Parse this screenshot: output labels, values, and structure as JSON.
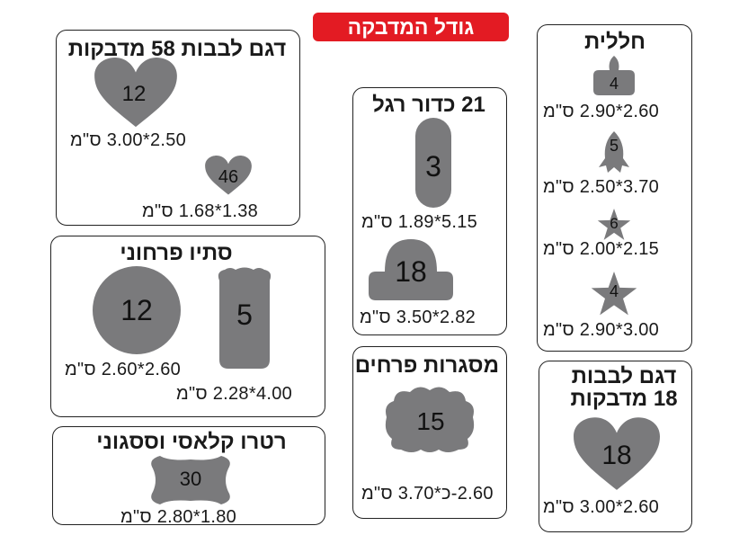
{
  "header": {
    "title": "גודל המדבקה"
  },
  "colors": {
    "banner": "#e31b23",
    "shape": "#7a7a7c",
    "border": "#222222"
  },
  "cards": {
    "hearts58": {
      "title": "דגם לבבות 58 מדבקות",
      "items": [
        {
          "icon": "heart-icon",
          "count": "12",
          "size": "2.50*3.00 ס\"מ"
        },
        {
          "icon": "heart-icon",
          "count": "46",
          "size": "1.38*1.68 ס\"מ"
        }
      ]
    },
    "spring": {
      "title": "סתיו פרחוני",
      "items": [
        {
          "icon": "circle-icon",
          "count": "12",
          "size": "2.60*2.60 ס\"מ"
        },
        {
          "icon": "scalloped-rectangle-icon",
          "count": "5",
          "size": "4.00*2.28 ס\"מ"
        }
      ]
    },
    "retro": {
      "title": "רטרו קלאסי וססגוני",
      "items": [
        {
          "icon": "ornate-frame-icon",
          "count": "30",
          "size": "1.80*2.80 ס\"מ"
        }
      ]
    },
    "football": {
      "title": "21 כדור רגל",
      "items": [
        {
          "icon": "pill-icon",
          "count": "3",
          "size": "5.15*1.89 ס\"מ"
        },
        {
          "icon": "rounded-arch-icon",
          "count": "18",
          "size": "2.82*3.50 ס\"מ"
        }
      ]
    },
    "flowers": {
      "title": "מסגרות פרחים",
      "items": [
        {
          "icon": "flower-frame-icon",
          "count": "15",
          "size": "2.60-כ*3.70 ס\"מ"
        }
      ]
    },
    "space": {
      "title": "חללית",
      "items": [
        {
          "icon": "rocket-tag-icon",
          "count": "4",
          "size": "2.60*2.90 ס\"מ"
        },
        {
          "icon": "rocket-icon",
          "count": "5",
          "size": "3.70*2.50 ס\"מ"
        },
        {
          "icon": "small-star-icon",
          "count": "6",
          "size": "2.15*2.00 ס\"מ"
        },
        {
          "icon": "star-icon",
          "count": "4",
          "size": "3.00*2.90 ס\"מ"
        }
      ]
    },
    "hearts18": {
      "title": "דגם לבבות 18 מדבקות",
      "items": [
        {
          "icon": "heart-icon",
          "count": "18",
          "size": "2.60*3.00 ס\"מ"
        }
      ]
    }
  }
}
